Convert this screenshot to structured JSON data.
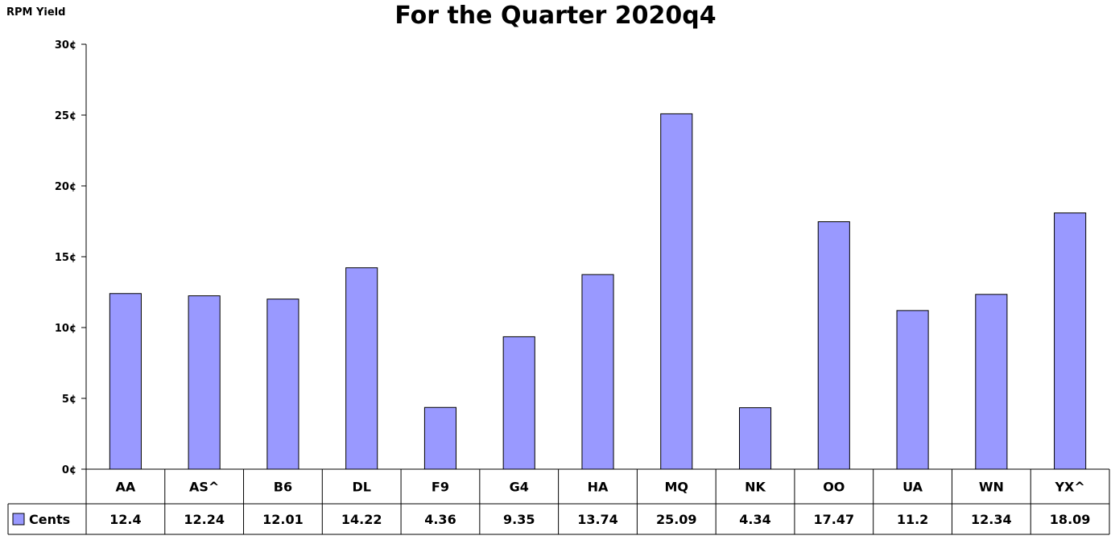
{
  "chart_data": {
    "type": "bar",
    "title": "For the Quarter 2020q4",
    "ylabel": "RPM Yield",
    "xlabel": "",
    "ylim": [
      0,
      30
    ],
    "yticks": [
      0,
      5,
      10,
      15,
      20,
      25,
      30
    ],
    "ytick_labels": [
      "0¢",
      "5¢",
      "10¢",
      "15¢",
      "20¢",
      "25¢",
      "30¢"
    ],
    "categories": [
      "AA",
      "AS^",
      "B6",
      "DL",
      "F9",
      "G4",
      "HA",
      "MQ",
      "NK",
      "OO",
      "UA",
      "WN",
      "YX^"
    ],
    "series": [
      {
        "name": "Cents",
        "values": [
          12.4,
          12.24,
          12.01,
          14.22,
          4.36,
          9.35,
          13.74,
          25.09,
          4.34,
          17.47,
          11.2,
          12.34,
          18.09
        ],
        "value_labels": [
          "12.4",
          "12.24",
          "12.01",
          "14.22",
          "4.36",
          "9.35",
          "13.74",
          "25.09",
          "4.34",
          "17.47",
          "11.2",
          "12.34",
          "18.09"
        ],
        "color": "#9999ff"
      }
    ],
    "grid": false,
    "legend": "data-table"
  }
}
